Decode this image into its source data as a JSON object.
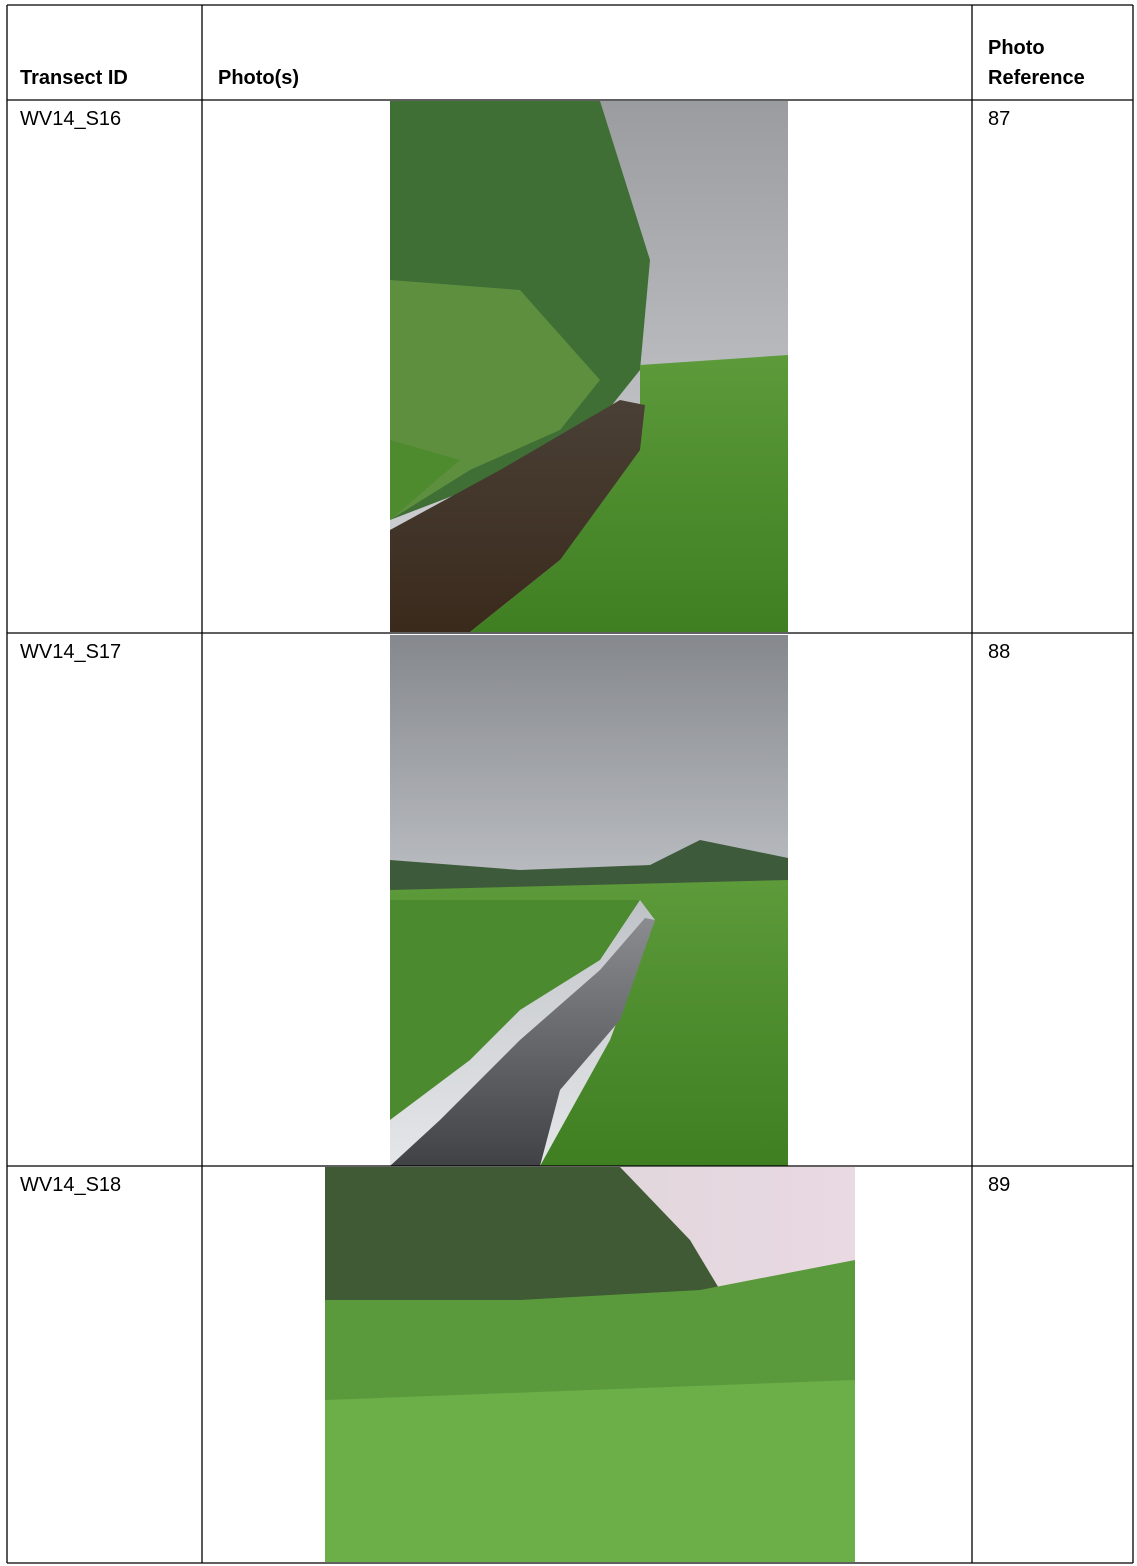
{
  "table": {
    "headers": [
      "Transect ID",
      "Photo(s)",
      "Photo",
      "Reference"
    ],
    "rows": [
      [
        "WV14_S16",
        "87"
      ],
      [
        "WV14_S17",
        "88"
      ],
      [
        "WV14_S18",
        "89"
      ]
    ]
  }
}
